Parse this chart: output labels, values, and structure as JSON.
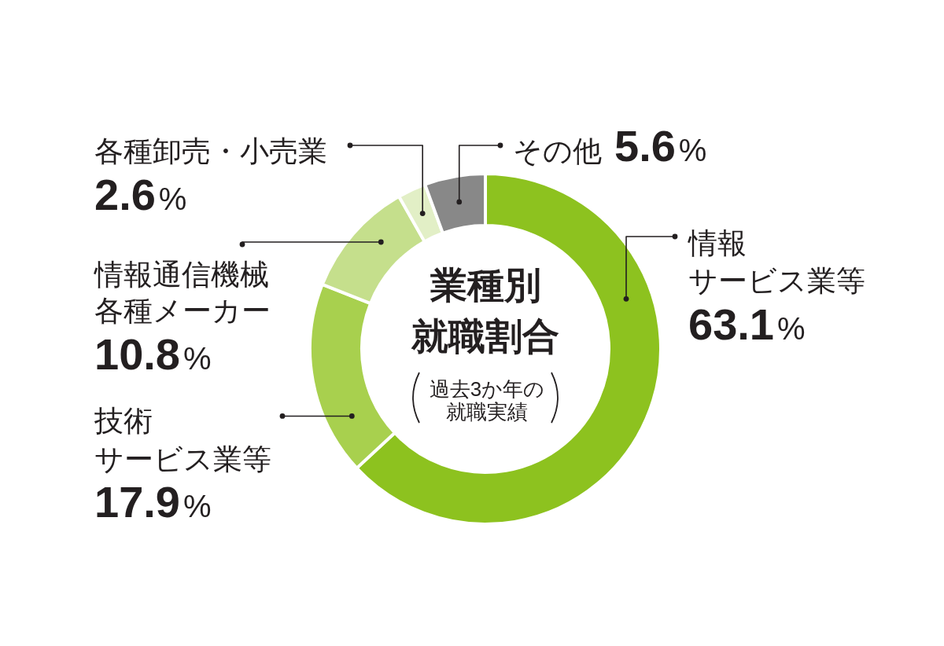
{
  "chart_data": {
    "type": "donut",
    "title": "業種別就職割合",
    "subtitle": "過去3か年の就職実績",
    "categories": [
      "情報サービス業等",
      "技術サービス業等",
      "情報通信機械各種メーカー",
      "各種卸売・小売業",
      "その他"
    ],
    "values": [
      63.1,
      17.9,
      10.8,
      2.6,
      5.6
    ],
    "value_labels": [
      "63.1%",
      "17.9%",
      "10.8%",
      "2.6%",
      "5.6%"
    ],
    "colors": [
      "#8dc21f",
      "#a8d04e",
      "#c5df8c",
      "#e2efc6",
      "#888888"
    ]
  }
}
